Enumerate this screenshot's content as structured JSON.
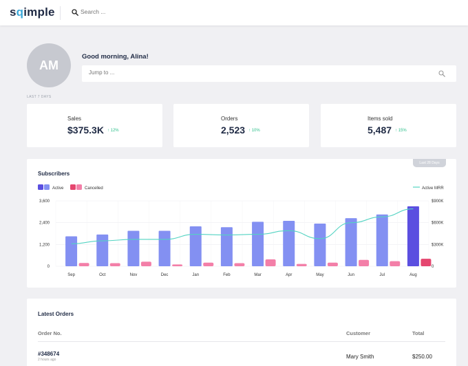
{
  "app": {
    "logo_pre": "s",
    "logo_q": "q",
    "logo_post": "imple"
  },
  "search": {
    "placeholder": "Search ..."
  },
  "profile": {
    "initials": "AM",
    "greeting": "Good morning, Alina!",
    "jump_placeholder": "Jump to ..."
  },
  "period_label": "LAST 7 DAYS",
  "stats": [
    {
      "label": "Sales",
      "value": "$375.3K",
      "delta": "↑ 12%"
    },
    {
      "label": "Orders",
      "value": "2,523",
      "delta": "↑ 10%"
    },
    {
      "label": "Items sold",
      "value": "5,487",
      "delta": "↑ 15%"
    }
  ],
  "subscribers": {
    "title": "Subscribers",
    "range_label": "Last 28 Days"
  },
  "colors": {
    "active": "#8390f2",
    "active_highlight": "#5b4fe0",
    "cancelled": "#f37fa8",
    "cancelled_highlight": "#e5466f",
    "mrr": "#52d3c2",
    "positive": "#2bbf8a"
  },
  "chart_data": {
    "type": "bar",
    "categories": [
      "Sep",
      "Oct",
      "Nov",
      "Dec",
      "Jan",
      "Feb",
      "Mar",
      "Apr",
      "May",
      "Jun",
      "Jul",
      "Aug"
    ],
    "series": [
      {
        "name": "Active",
        "values": [
          1650,
          1750,
          1950,
          1950,
          2200,
          2150,
          2450,
          2500,
          2350,
          2650,
          2850,
          3300
        ]
      },
      {
        "name": "Cancelled",
        "values": [
          180,
          170,
          250,
          100,
          200,
          170,
          380,
          130,
          200,
          350,
          280,
          410
        ]
      },
      {
        "name": "Active MRR",
        "type": "line",
        "axis": "right",
        "values": [
          310000,
          350000,
          370000,
          370000,
          440000,
          430000,
          440000,
          490000,
          380000,
          600000,
          680000,
          790000
        ]
      }
    ],
    "yticks_left": [
      "0",
      "1,200",
      "2,400",
      "3,600"
    ],
    "yticks_right": [
      "0",
      "$300K",
      "$600K",
      "$900K"
    ],
    "ylim": [
      0,
      3600
    ],
    "ylim_right": [
      0,
      900000
    ],
    "legend": [
      {
        "name": "Active"
      },
      {
        "name": "Cancelled"
      },
      {
        "name": "Active MRR"
      }
    ],
    "grid": true
  },
  "orders": {
    "title": "Latest Orders",
    "columns": {
      "order_no": "Order No.",
      "customer": "Customer",
      "total": "Total"
    },
    "rows": [
      {
        "order_no": "#348674",
        "time": "2 hours ago",
        "customer": "Mary Smith",
        "total": "$250.00"
      }
    ]
  }
}
